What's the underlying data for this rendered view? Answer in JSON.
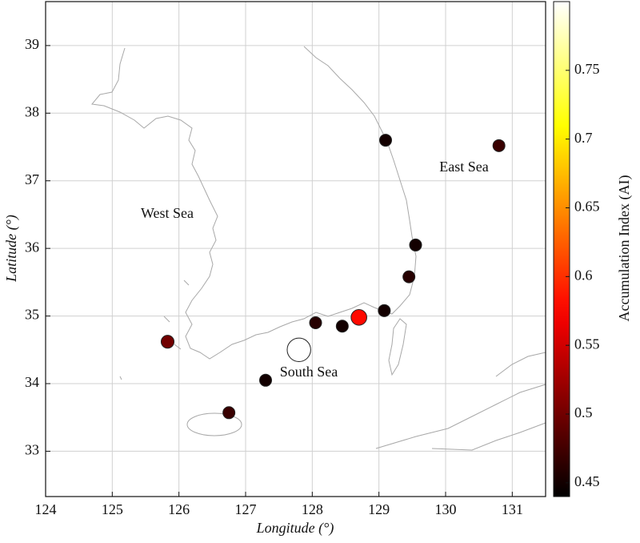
{
  "chart_data": {
    "type": "scatter",
    "x_label": "Longitude (°)",
    "y_label": "Latitude (°)",
    "colorbar_label": "Accumulation Index (AI)",
    "annotations": [
      "West Sea",
      "East Sea",
      "South Sea"
    ],
    "x": [
      129.1,
      130.8,
      129.55,
      129.45,
      129.08,
      128.7,
      128.45,
      128.05,
      127.8,
      127.3,
      126.75,
      125.83
    ],
    "y": [
      37.6,
      37.52,
      36.05,
      35.58,
      35.08,
      34.98,
      34.85,
      34.9,
      34.5,
      34.05,
      33.57,
      34.62
    ],
    "values": [
      0.45,
      0.47,
      0.45,
      0.46,
      0.45,
      0.58,
      0.45,
      0.46,
      0.8,
      0.45,
      0.47,
      0.5
    ],
    "xlim": [
      124,
      131.5
    ],
    "ylim": [
      32.33,
      39.65
    ],
    "xticks": [
      124,
      125,
      126,
      127,
      128,
      129,
      130,
      131
    ],
    "yticks": [
      33,
      34,
      35,
      36,
      37,
      38,
      39
    ],
    "clim": [
      0.44,
      0.8
    ],
    "cticks": [
      0.45,
      0.5,
      0.55,
      0.6,
      0.65,
      0.7,
      0.75
    ],
    "colormap": "hot",
    "grid": true
  }
}
